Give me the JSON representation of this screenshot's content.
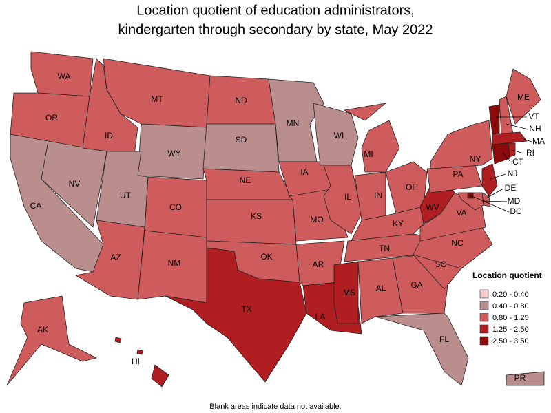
{
  "title": "Location quotient of education administrators,",
  "subtitle": "kindergarten through secondary by state, May 2022",
  "legend": {
    "title": "Location quotient",
    "items": [
      {
        "label": "0.20 - 0.40",
        "color": "#f6c8c8"
      },
      {
        "label": "0.40 - 0.80",
        "color": "#bb8e8e"
      },
      {
        "label": "0.80 - 1.25",
        "color": "#cf5c5c"
      },
      {
        "label": "1.25 - 2.50",
        "color": "#b01e22"
      },
      {
        "label": "2.50 - 3.50",
        "color": "#8c0a0a"
      }
    ]
  },
  "states": [
    {
      "label": "WA",
      "color": "#cf5c5c"
    },
    {
      "label": "OR",
      "color": "#cf5c5c"
    },
    {
      "label": "CA",
      "color": "#bb8e8e"
    },
    {
      "label": "NV",
      "color": "#bb8e8e"
    },
    {
      "label": "ID",
      "color": "#cf5c5c"
    },
    {
      "label": "MT",
      "color": "#cf5c5c"
    },
    {
      "label": "WY",
      "color": "#bb8e8e"
    },
    {
      "label": "UT",
      "color": "#bb8e8e"
    },
    {
      "label": "CO",
      "color": "#cf5c5c"
    },
    {
      "label": "AZ",
      "color": "#cf5c5c"
    },
    {
      "label": "NM",
      "color": "#cf5c5c"
    },
    {
      "label": "ND",
      "color": "#cf5c5c"
    },
    {
      "label": "SD",
      "color": "#bb8e8e"
    },
    {
      "label": "NE",
      "color": "#cf5c5c"
    },
    {
      "label": "KS",
      "color": "#cf5c5c"
    },
    {
      "label": "OK",
      "color": "#cf5c5c"
    },
    {
      "label": "TX",
      "color": "#b01e22"
    },
    {
      "label": "MN",
      "color": "#bb8e8e"
    },
    {
      "label": "IA",
      "color": "#cf5c5c"
    },
    {
      "label": "MO",
      "color": "#cf5c5c"
    },
    {
      "label": "AR",
      "color": "#cf5c5c"
    },
    {
      "label": "LA",
      "color": "#b01e22"
    },
    {
      "label": "WI",
      "color": "#bb8e8e"
    },
    {
      "label": "IL",
      "color": "#cf5c5c"
    },
    {
      "label": "MI",
      "color": "#cf5c5c"
    },
    {
      "label": "IN",
      "color": "#cf5c5c"
    },
    {
      "label": "OH",
      "color": "#cf5c5c"
    },
    {
      "label": "KY",
      "color": "#cf5c5c"
    },
    {
      "label": "TN",
      "color": "#cf5c5c"
    },
    {
      "label": "MS",
      "color": "#b01e22"
    },
    {
      "label": "AL",
      "color": "#cf5c5c"
    },
    {
      "label": "GA",
      "color": "#cf5c5c"
    },
    {
      "label": "FL",
      "color": "#bb8e8e"
    },
    {
      "label": "SC",
      "color": "#cf5c5c"
    },
    {
      "label": "NC",
      "color": "#cf5c5c"
    },
    {
      "label": "VA",
      "color": "#cf5c5c"
    },
    {
      "label": "WV",
      "color": "#b01e22"
    },
    {
      "label": "PA",
      "color": "#cf5c5c"
    },
    {
      "label": "NY",
      "color": "#cf5c5c"
    },
    {
      "label": "VT",
      "color": "#8c0a0a"
    },
    {
      "label": "NH",
      "color": "#cf5c5c"
    },
    {
      "label": "ME",
      "color": "#cf5c5c"
    },
    {
      "label": "MA",
      "color": "#b01e22"
    },
    {
      "label": "CT",
      "color": "#8c0a0a"
    },
    {
      "label": "RI",
      "color": "#b01e22"
    },
    {
      "label": "NJ",
      "color": "#b01e22"
    },
    {
      "label": "DE",
      "color": "#cf5c5c"
    },
    {
      "label": "MD",
      "color": "#cf5c5c"
    },
    {
      "label": "DC",
      "color": "#8c0a0a"
    },
    {
      "label": "HI",
      "color": "#b01e22"
    },
    {
      "label": "AK",
      "color": "#cf5c5c"
    },
    {
      "label": "PR",
      "color": "#bb8e8e"
    }
  ],
  "footnote": "Blank areas indicate data not available."
}
